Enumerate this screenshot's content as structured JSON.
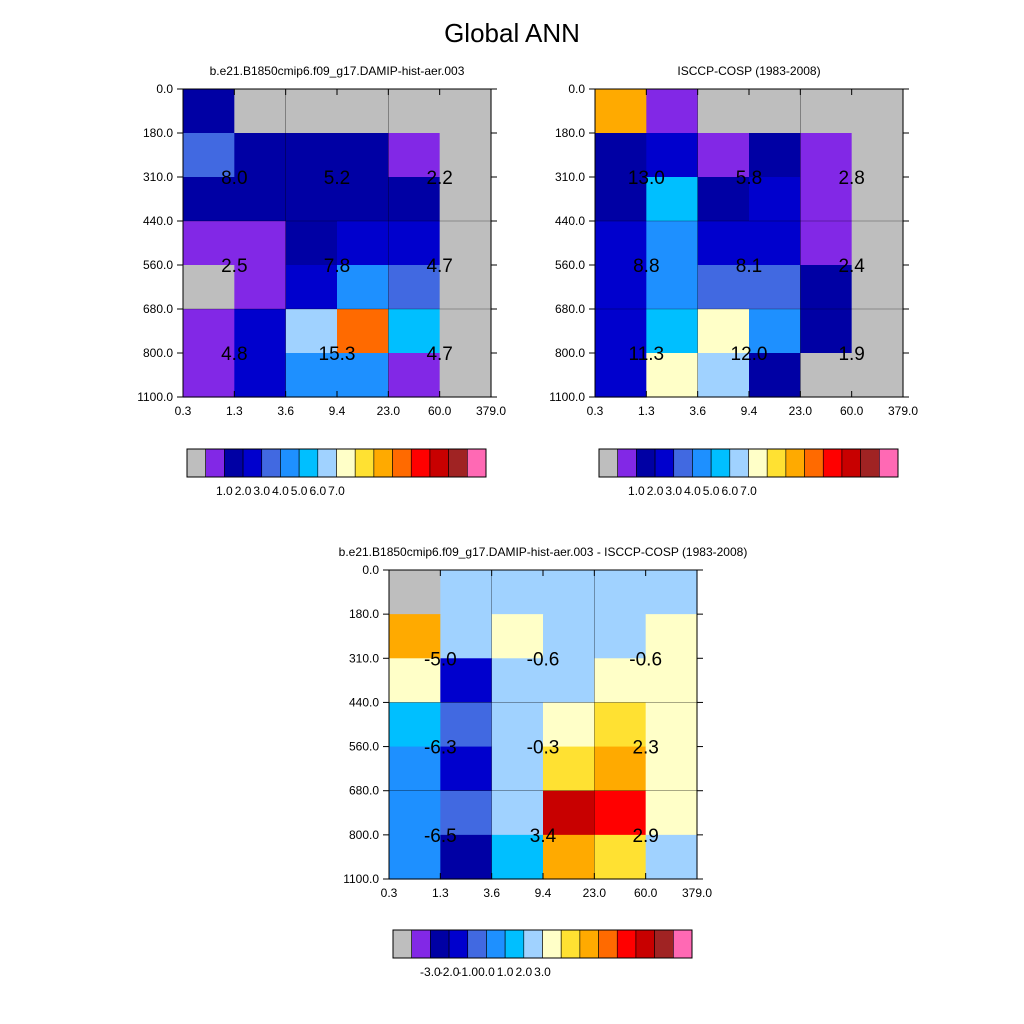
{
  "figure_title": "Global ANN",
  "chart_data": [
    {
      "type": "heatmap",
      "title": "b.e21.B1850cmip6.f09_g17.DAMIP-hist-aer.003",
      "x_ticks": [
        "0.3",
        "1.3",
        "3.6",
        "9.4",
        "23.0",
        "60.0",
        "379.0"
      ],
      "y_ticks": [
        "0.0",
        "180.0",
        "310.0",
        "440.0",
        "560.0",
        "680.0",
        "800.0",
        "1100.0"
      ],
      "cell_colors": [
        [
          "#0000a4",
          "#bebebe",
          "#bebebe",
          "#bebebe",
          "#bebebe",
          "#bebebe"
        ],
        [
          "#4169e1",
          "#0000a4",
          "#0000a4",
          "#0000a4",
          "#8228e6",
          "#bebebe"
        ],
        [
          "#0000a4",
          "#0000a4",
          "#0000a4",
          "#0000a4",
          "#0000a4",
          "#bebebe"
        ],
        [
          "#8228e6",
          "#8228e6",
          "#0000a4",
          "#0000cd",
          "#0000cd",
          "#bebebe"
        ],
        [
          "#bebebe",
          "#8228e6",
          "#0000cd",
          "#1e90ff",
          "#4169e1",
          "#bebebe"
        ],
        [
          "#8228e6",
          "#0000cd",
          "#a0d2ff",
          "#ff6a00",
          "#00bfff",
          "#bebebe"
        ],
        [
          "#8228e6",
          "#0000cd",
          "#1e90ff",
          "#1e90ff",
          "#8228e6",
          "#bebebe"
        ]
      ],
      "annotations": [
        {
          "col": 1,
          "row": 2,
          "text": "8.0"
        },
        {
          "col": 3,
          "row": 2,
          "text": "5.2"
        },
        {
          "col": 5,
          "row": 2,
          "text": "2.2"
        },
        {
          "col": 1,
          "row": 4,
          "text": "2.5"
        },
        {
          "col": 3,
          "row": 4,
          "text": "7.8"
        },
        {
          "col": 5,
          "row": 4,
          "text": "4.7"
        },
        {
          "col": 1,
          "row": 6,
          "text": "4.8"
        },
        {
          "col": 3,
          "row": 6,
          "text": "15.3"
        },
        {
          "col": 5,
          "row": 6,
          "text": "4.7"
        }
      ],
      "colorbar": {
        "colors": [
          "#bebebe",
          "#8228e6",
          "#0000a4",
          "#0000cd",
          "#4169e1",
          "#1e90ff",
          "#00bfff",
          "#a0d2ff",
          "#ffffc8",
          "#ffe132",
          "#ffaa00",
          "#ff6a00",
          "#ff0000",
          "#c80000",
          "#a02323",
          "#ff69b4"
        ],
        "labels": [
          "1.0",
          "2.0",
          "3.0",
          "4.0",
          "5.0",
          "6.0",
          "7.0"
        ]
      }
    },
    {
      "type": "heatmap",
      "title": "ISCCP-COSP (1983-2008)",
      "x_ticks": [
        "0.3",
        "1.3",
        "3.6",
        "9.4",
        "23.0",
        "60.0",
        "379.0"
      ],
      "y_ticks": [
        "0.0",
        "180.0",
        "310.0",
        "440.0",
        "560.0",
        "680.0",
        "800.0",
        "1100.0"
      ],
      "cell_colors": [
        [
          "#ffaa00",
          "#8228e6",
          "#bebebe",
          "#bebebe",
          "#bebebe",
          "#bebebe"
        ],
        [
          "#0000a4",
          "#0000cd",
          "#8228e6",
          "#0000a4",
          "#8228e6",
          "#bebebe"
        ],
        [
          "#0000a4",
          "#00bfff",
          "#0000a4",
          "#0000cd",
          "#8228e6",
          "#bebebe"
        ],
        [
          "#0000cd",
          "#1e90ff",
          "#0000cd",
          "#0000cd",
          "#8228e6",
          "#bebebe"
        ],
        [
          "#0000cd",
          "#1e90ff",
          "#4169e1",
          "#4169e1",
          "#0000a4",
          "#bebebe"
        ],
        [
          "#0000cd",
          "#00bfff",
          "#ffffc8",
          "#1e90ff",
          "#0000a4",
          "#bebebe"
        ],
        [
          "#0000cd",
          "#ffffc8",
          "#a0d2ff",
          "#0000a4",
          "#bebebe",
          "#bebebe"
        ]
      ],
      "annotations": [
        {
          "col": 1,
          "row": 2,
          "text": "13.0"
        },
        {
          "col": 3,
          "row": 2,
          "text": "5.8"
        },
        {
          "col": 5,
          "row": 2,
          "text": "2.8"
        },
        {
          "col": 1,
          "row": 4,
          "text": "8.8"
        },
        {
          "col": 3,
          "row": 4,
          "text": "8.1"
        },
        {
          "col": 5,
          "row": 4,
          "text": "2.4"
        },
        {
          "col": 1,
          "row": 6,
          "text": "11.3"
        },
        {
          "col": 3,
          "row": 6,
          "text": "12.0"
        },
        {
          "col": 5,
          "row": 6,
          "text": "1.9"
        }
      ],
      "colorbar": {
        "colors": [
          "#bebebe",
          "#8228e6",
          "#0000a4",
          "#0000cd",
          "#4169e1",
          "#1e90ff",
          "#00bfff",
          "#a0d2ff",
          "#ffffc8",
          "#ffe132",
          "#ffaa00",
          "#ff6a00",
          "#ff0000",
          "#c80000",
          "#a02323",
          "#ff69b4"
        ],
        "labels": [
          "1.0",
          "2.0",
          "3.0",
          "4.0",
          "5.0",
          "6.0",
          "7.0"
        ]
      }
    },
    {
      "type": "heatmap",
      "title": "b.e21.B1850cmip6.f09_g17.DAMIP-hist-aer.003 - ISCCP-COSP (1983-2008)",
      "x_ticks": [
        "0.3",
        "1.3",
        "3.6",
        "9.4",
        "23.0",
        "60.0",
        "379.0"
      ],
      "y_ticks": [
        "0.0",
        "180.0",
        "310.0",
        "440.0",
        "560.0",
        "680.0",
        "800.0",
        "1100.0"
      ],
      "cell_colors": [
        [
          "#bebebe",
          "#a0d2ff",
          "#a0d2ff",
          "#a0d2ff",
          "#a0d2ff",
          "#a0d2ff"
        ],
        [
          "#ffaa00",
          "#a0d2ff",
          "#ffffc8",
          "#a0d2ff",
          "#a0d2ff",
          "#ffffc8"
        ],
        [
          "#ffffc8",
          "#0000cd",
          "#a0d2ff",
          "#a0d2ff",
          "#ffffc8",
          "#ffffc8"
        ],
        [
          "#00bfff",
          "#4169e1",
          "#a0d2ff",
          "#ffffc8",
          "#ffe132",
          "#ffffc8"
        ],
        [
          "#1e90ff",
          "#0000cd",
          "#a0d2ff",
          "#ffe132",
          "#ffaa00",
          "#ffffc8"
        ],
        [
          "#1e90ff",
          "#4169e1",
          "#a0d2ff",
          "#c80000",
          "#ff0000",
          "#ffffc8"
        ],
        [
          "#1e90ff",
          "#0000a4",
          "#00bfff",
          "#ffaa00",
          "#ffe132",
          "#a0d2ff"
        ]
      ],
      "annotations": [
        {
          "col": 1,
          "row": 2,
          "text": "-5.0"
        },
        {
          "col": 3,
          "row": 2,
          "text": "-0.6"
        },
        {
          "col": 5,
          "row": 2,
          "text": "-0.6"
        },
        {
          "col": 1,
          "row": 4,
          "text": "-6.3"
        },
        {
          "col": 3,
          "row": 4,
          "text": "-0.3"
        },
        {
          "col": 5,
          "row": 4,
          "text": "2.3"
        },
        {
          "col": 1,
          "row": 6,
          "text": "-6.5"
        },
        {
          "col": 3,
          "row": 6,
          "text": "3.4"
        },
        {
          "col": 5,
          "row": 6,
          "text": "2.9"
        }
      ],
      "colorbar": {
        "colors": [
          "#bebebe",
          "#8228e6",
          "#0000a4",
          "#0000cd",
          "#4169e1",
          "#1e90ff",
          "#00bfff",
          "#a0d2ff",
          "#ffffc8",
          "#ffe132",
          "#ffaa00",
          "#ff6a00",
          "#ff0000",
          "#c80000",
          "#a02323",
          "#ff69b4"
        ],
        "labels": [
          "-3.0",
          "-2.0",
          "-1.0",
          "0.0",
          "1.0",
          "2.0",
          "3.0"
        ]
      }
    }
  ]
}
